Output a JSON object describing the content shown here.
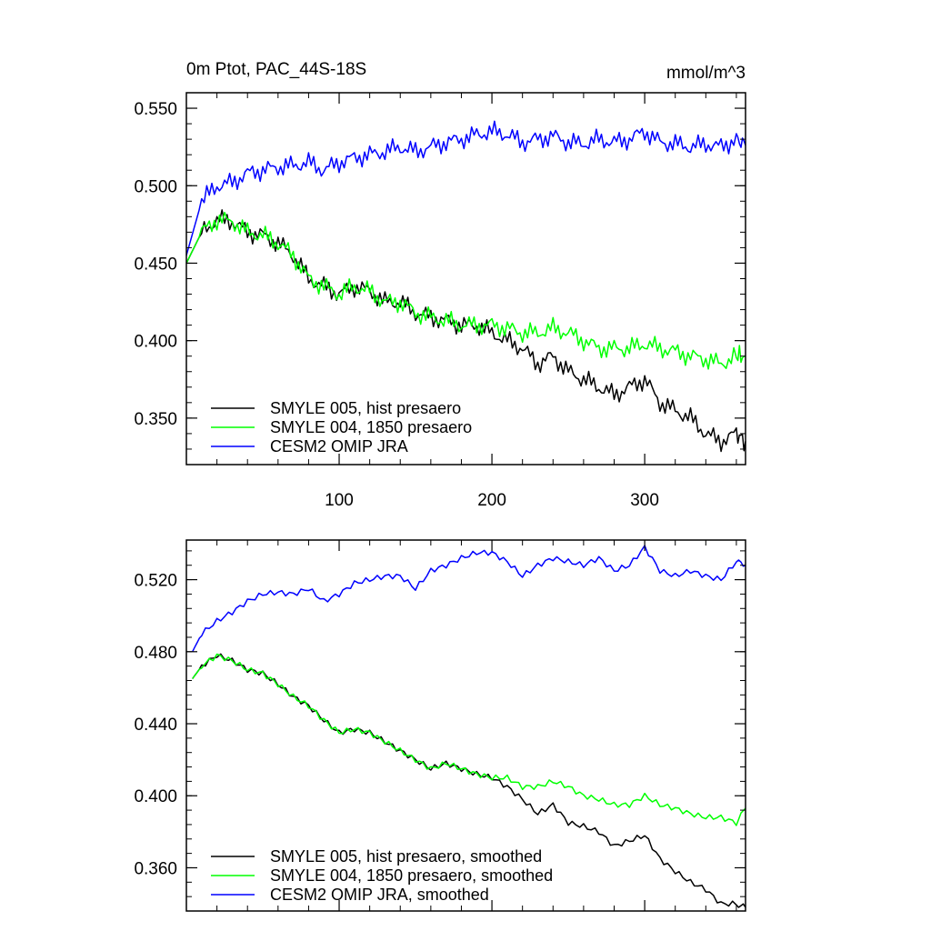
{
  "chart_data": [
    {
      "type": "line",
      "title": "0m Ptot, PAC_44S-18S",
      "units": "mmol/m^3",
      "xlim": [
        0,
        366
      ],
      "ylim": [
        0.32,
        0.56
      ],
      "xticks": [
        100,
        200,
        300
      ],
      "xtick_labels": [
        "100",
        "200",
        "300"
      ],
      "yticks": [
        0.35,
        0.4,
        0.45,
        0.5,
        0.55
      ],
      "ytick_labels": [
        "0.350",
        "0.400",
        "0.450",
        "0.500",
        "0.550"
      ],
      "legend": "bottom-left",
      "x": [
        0,
        10,
        20,
        30,
        40,
        50,
        60,
        70,
        80,
        90,
        100,
        110,
        120,
        130,
        140,
        150,
        160,
        170,
        180,
        190,
        200,
        210,
        220,
        230,
        240,
        250,
        260,
        270,
        280,
        290,
        300,
        310,
        320,
        330,
        340,
        350,
        360,
        366
      ],
      "series": [
        {
          "name": "SMYLE 005, hist presaero",
          "color": "#000000",
          "values": [
            0.45,
            0.47,
            0.478,
            0.477,
            0.47,
            0.468,
            0.463,
            0.455,
            0.44,
            0.435,
            0.43,
            0.435,
            0.432,
            0.425,
            0.425,
            0.418,
            0.415,
            0.413,
            0.41,
            0.41,
            0.405,
            0.4,
            0.395,
            0.385,
            0.39,
            0.38,
            0.375,
            0.37,
            0.365,
            0.37,
            0.375,
            0.36,
            0.355,
            0.35,
            0.34,
            0.335,
            0.34,
            0.335
          ]
        },
        {
          "name": "SMYLE 004, 1850 presaero",
          "color": "#00ff00",
          "values": [
            0.45,
            0.47,
            0.478,
            0.477,
            0.47,
            0.468,
            0.463,
            0.455,
            0.44,
            0.435,
            0.43,
            0.435,
            0.432,
            0.425,
            0.425,
            0.418,
            0.415,
            0.413,
            0.41,
            0.41,
            0.41,
            0.408,
            0.405,
            0.405,
            0.408,
            0.405,
            0.4,
            0.395,
            0.395,
            0.395,
            0.398,
            0.395,
            0.393,
            0.39,
            0.388,
            0.385,
            0.39,
            0.39
          ]
        },
        {
          "name": "CESM2 OMIP JRA",
          "color": "#0000ff",
          "values": [
            0.455,
            0.49,
            0.5,
            0.502,
            0.508,
            0.51,
            0.512,
            0.513,
            0.515,
            0.51,
            0.515,
            0.518,
            0.52,
            0.522,
            0.525,
            0.522,
            0.525,
            0.528,
            0.53,
            0.533,
            0.535,
            0.533,
            0.528,
            0.53,
            0.532,
            0.528,
            0.527,
            0.53,
            0.528,
            0.53,
            0.535,
            0.528,
            0.527,
            0.525,
            0.527,
            0.525,
            0.53,
            0.526
          ]
        }
      ]
    },
    {
      "type": "line",
      "xlim": [
        0,
        366
      ],
      "ylim": [
        0.336,
        0.542
      ],
      "xticks": [
        100,
        200,
        300
      ],
      "yticks": [
        0.36,
        0.4,
        0.44,
        0.48,
        0.52
      ],
      "ytick_labels": [
        "0.360",
        "0.400",
        "0.440",
        "0.480",
        "0.520"
      ],
      "legend": "bottom-left",
      "x": [
        4,
        10,
        20,
        30,
        40,
        50,
        60,
        70,
        80,
        90,
        100,
        110,
        120,
        130,
        140,
        150,
        160,
        170,
        180,
        190,
        200,
        210,
        220,
        230,
        240,
        250,
        260,
        270,
        280,
        290,
        300,
        310,
        320,
        330,
        340,
        350,
        360,
        366
      ],
      "series": [
        {
          "name": "SMYLE 005, hist presaero, smoothed",
          "color": "#000000",
          "values": [
            0.465,
            0.472,
            0.478,
            0.475,
            0.47,
            0.468,
            0.462,
            0.455,
            0.45,
            0.442,
            0.435,
            0.437,
            0.435,
            0.43,
            0.425,
            0.42,
            0.415,
            0.418,
            0.415,
            0.412,
            0.41,
            0.405,
            0.398,
            0.39,
            0.395,
            0.385,
            0.383,
            0.38,
            0.372,
            0.375,
            0.378,
            0.365,
            0.358,
            0.352,
            0.348,
            0.34,
            0.34,
            0.338
          ]
        },
        {
          "name": "SMYLE 004, 1850 presaero, smoothed",
          "color": "#00ff00",
          "values": [
            0.465,
            0.472,
            0.478,
            0.475,
            0.47,
            0.468,
            0.462,
            0.455,
            0.45,
            0.442,
            0.435,
            0.437,
            0.435,
            0.43,
            0.425,
            0.42,
            0.415,
            0.418,
            0.415,
            0.412,
            0.41,
            0.41,
            0.405,
            0.405,
            0.408,
            0.405,
            0.4,
            0.398,
            0.395,
            0.395,
            0.4,
            0.395,
            0.393,
            0.39,
            0.388,
            0.388,
            0.385,
            0.393
          ]
        },
        {
          "name": "CESM2 OMIP JRA, smoothed",
          "color": "#0000ff",
          "values": [
            0.48,
            0.49,
            0.497,
            0.502,
            0.508,
            0.512,
            0.513,
            0.512,
            0.515,
            0.508,
            0.512,
            0.518,
            0.52,
            0.522,
            0.522,
            0.515,
            0.525,
            0.528,
            0.532,
            0.535,
            0.535,
            0.53,
            0.522,
            0.528,
            0.532,
            0.53,
            0.528,
            0.532,
            0.525,
            0.528,
            0.538,
            0.525,
            0.522,
            0.525,
            0.522,
            0.52,
            0.53,
            0.528
          ]
        }
      ]
    }
  ]
}
